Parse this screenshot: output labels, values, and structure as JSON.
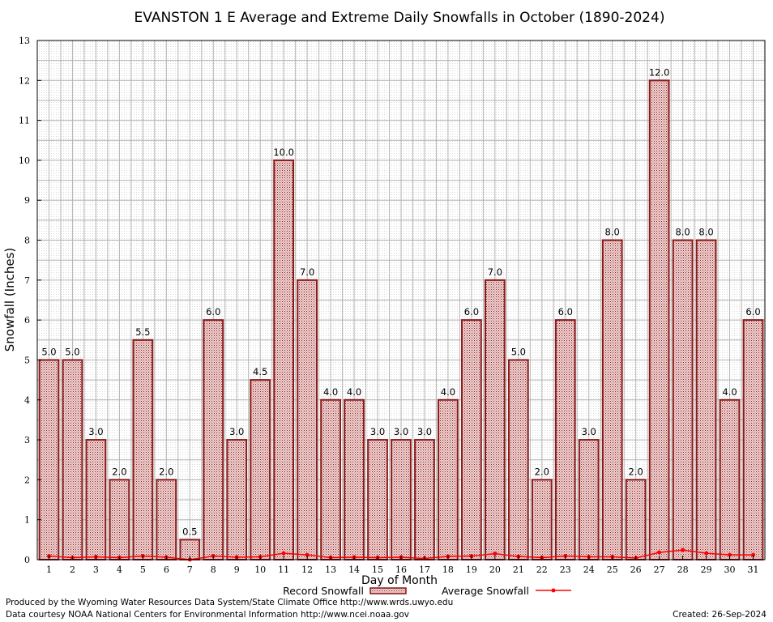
{
  "chart_data": {
    "type": "bar",
    "title": "EVANSTON 1 E Average and Extreme Daily Snowfalls in October (1890-2024)",
    "xlabel": "Day of Month",
    "ylabel": "Snowfall (Inches)",
    "ylim": [
      0,
      13
    ],
    "yticks": [
      "0",
      "1",
      "2",
      "3",
      "4",
      "5",
      "6",
      "7",
      "8",
      "9",
      "10",
      "11",
      "12",
      "13"
    ],
    "categories": [
      "1",
      "2",
      "3",
      "4",
      "5",
      "6",
      "7",
      "8",
      "9",
      "10",
      "11",
      "12",
      "13",
      "14",
      "15",
      "16",
      "17",
      "18",
      "19",
      "20",
      "21",
      "22",
      "23",
      "24",
      "25",
      "26",
      "27",
      "28",
      "29",
      "30",
      "31"
    ],
    "series": [
      {
        "name": "Record Snowfall",
        "kind": "bar",
        "color": "#8b1a1a",
        "values": [
          5.0,
          5.0,
          3.0,
          2.0,
          5.5,
          2.0,
          0.5,
          6.0,
          3.0,
          4.5,
          10.0,
          7.0,
          4.0,
          4.0,
          3.0,
          3.0,
          3.0,
          4.0,
          6.0,
          7.0,
          5.0,
          2.0,
          6.0,
          3.0,
          8.0,
          2.0,
          12.0,
          8.0,
          8.0,
          4.0,
          6.0
        ],
        "labels": [
          "5.0",
          "5.0",
          "3.0",
          "2.0",
          "5.5",
          "2.0",
          "0.5",
          "6.0",
          "3.0",
          "4.5",
          "10.0",
          "7.0",
          "4.0",
          "4.0",
          "3.0",
          "3.0",
          "3.0",
          "4.0",
          "6.0",
          "7.0",
          "5.0",
          "2.0",
          "6.0",
          "3.0",
          "8.0",
          "2.0",
          "12.0",
          "8.0",
          "8.0",
          "4.0",
          "6.0"
        ]
      },
      {
        "name": "Average Snowfall",
        "kind": "line",
        "color": "#ff0000",
        "values": [
          0.09,
          0.05,
          0.07,
          0.05,
          0.09,
          0.06,
          0.0,
          0.09,
          0.06,
          0.07,
          0.16,
          0.12,
          0.05,
          0.06,
          0.05,
          0.06,
          0.03,
          0.08,
          0.09,
          0.15,
          0.08,
          0.05,
          0.09,
          0.07,
          0.07,
          0.04,
          0.18,
          0.24,
          0.16,
          0.12,
          0.12
        ]
      }
    ],
    "grid": true,
    "legend_position": "bottom-center"
  },
  "footer": {
    "produced_by": "Produced by the Wyoming Water Resources Data System/State Climate Office http://www.wrds.uwyo.edu",
    "courtesy": "Data courtesy NOAA National Centers for Environmental Information http://www.ncei.noaa.gov",
    "created": "Created:  26-Sep-2024"
  }
}
